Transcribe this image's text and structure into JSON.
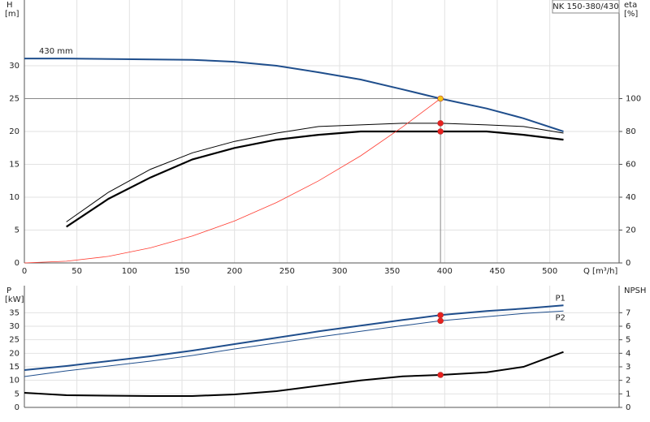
{
  "chart_data": [
    {
      "type": "line",
      "title": "NK 150-380/430",
      "x_label": "Q [m³/h]",
      "y_label": "H",
      "y_unit": "[m]",
      "y2_label": "eta",
      "y2_unit": "[%]",
      "xlim": [
        0,
        566
      ],
      "xticks": [
        0,
        50,
        100,
        150,
        200,
        250,
        300,
        350,
        400,
        450,
        500
      ],
      "ylim": [
        0,
        40
      ],
      "yticks": [
        0,
        5,
        10,
        15,
        20,
        25,
        30
      ],
      "y2lim": [
        0,
        160
      ],
      "y2ticks": [
        0,
        20,
        40,
        60,
        80,
        100
      ],
      "grid": true,
      "series": [
        {
          "name": "430 mm",
          "color": "#1f4e8c",
          "width": 2,
          "x": [
            0,
            40,
            160,
            200,
            240,
            280,
            320,
            360,
            396,
            440,
            475,
            513
          ],
          "values": [
            31.1,
            31.1,
            30.9,
            30.6,
            30.0,
            29.0,
            27.9,
            26.4,
            25,
            23.5,
            22.0,
            20.0
          ]
        },
        {
          "color": "#000000",
          "width": 1,
          "axis": "y2",
          "x": [
            40,
            80,
            120,
            160,
            200,
            240,
            280,
            320,
            360,
            396,
            440,
            475,
            513
          ],
          "values": [
            25,
            43,
            57,
            67,
            74,
            79,
            83,
            84,
            85,
            85,
            84,
            83,
            79
          ]
        },
        {
          "color": "#000000",
          "width": 2.2,
          "axis": "y2",
          "x": [
            40,
            80,
            120,
            160,
            200,
            240,
            280,
            320,
            360,
            396,
            440,
            475,
            513
          ],
          "values": [
            22,
            39,
            52,
            63,
            70,
            75,
            78,
            80,
            80,
            80,
            80,
            78,
            75
          ]
        },
        {
          "color": "#ff3b30",
          "width": 0.8,
          "x": [
            0,
            40,
            80,
            120,
            160,
            200,
            240,
            280,
            320,
            360,
            396
          ],
          "values": [
            0,
            0.26,
            1.0,
            2.3,
            4.1,
            6.4,
            9.2,
            12.5,
            16.3,
            20.7,
            25
          ]
        }
      ],
      "duty_point": {
        "x": 396,
        "y": 25,
        "color": "#888888"
      },
      "markers": [
        {
          "x": 396,
          "y": 25,
          "color": "#f5c518"
        },
        {
          "x": 396,
          "y": 85,
          "axis": "y2",
          "color": "#e8201e"
        },
        {
          "x": 396,
          "y": 80,
          "axis": "y2",
          "color": "#e8201e"
        }
      ]
    },
    {
      "type": "line",
      "y_label": "P",
      "y_unit": "[kW]",
      "y2_label": "NPSH",
      "xlim": [
        0,
        566
      ],
      "xticks": [
        0,
        50,
        100,
        150,
        200,
        250,
        300,
        350,
        400,
        450,
        500
      ],
      "ylim": [
        0,
        45
      ],
      "yticks": [
        0,
        5,
        10,
        15,
        20,
        25,
        30,
        35
      ],
      "y2lim": [
        0,
        9
      ],
      "y2ticks": [
        0,
        1,
        2,
        3,
        4,
        5,
        6,
        7
      ],
      "grid": true,
      "series": [
        {
          "name": "P1",
          "color": "#1f4e8c",
          "width": 2,
          "x": [
            0,
            40,
            120,
            160,
            200,
            280,
            360,
            396,
            440,
            475,
            513
          ],
          "values": [
            13.8,
            15.3,
            18.9,
            21.0,
            23.4,
            28.1,
            32.3,
            34.1,
            35.6,
            36.5,
            37.7
          ]
        },
        {
          "name": "P2",
          "color": "#1f4e8c",
          "width": 1,
          "x": [
            0,
            40,
            120,
            160,
            200,
            280,
            360,
            396,
            440,
            475,
            513
          ],
          "values": [
            11.4,
            13.5,
            17.1,
            19.2,
            21.6,
            26.0,
            30.2,
            32.0,
            33.5,
            34.7,
            35.6
          ]
        },
        {
          "color": "#000000",
          "width": 2,
          "axis": "y2",
          "x": [
            0,
            40,
            120,
            160,
            200,
            240,
            320,
            360,
            396,
            440,
            475,
            513
          ],
          "values": [
            1.08,
            0.9,
            0.84,
            0.84,
            0.96,
            1.2,
            2.0,
            2.3,
            2.4,
            2.6,
            3.0,
            4.1
          ]
        }
      ],
      "markers": [
        {
          "x": 396,
          "y": 34.1,
          "color": "#e8201e"
        },
        {
          "x": 396,
          "y": 32.0,
          "color": "#e8201e"
        },
        {
          "x": 396,
          "y": 2.4,
          "axis": "y2",
          "color": "#e8201e"
        }
      ]
    }
  ]
}
